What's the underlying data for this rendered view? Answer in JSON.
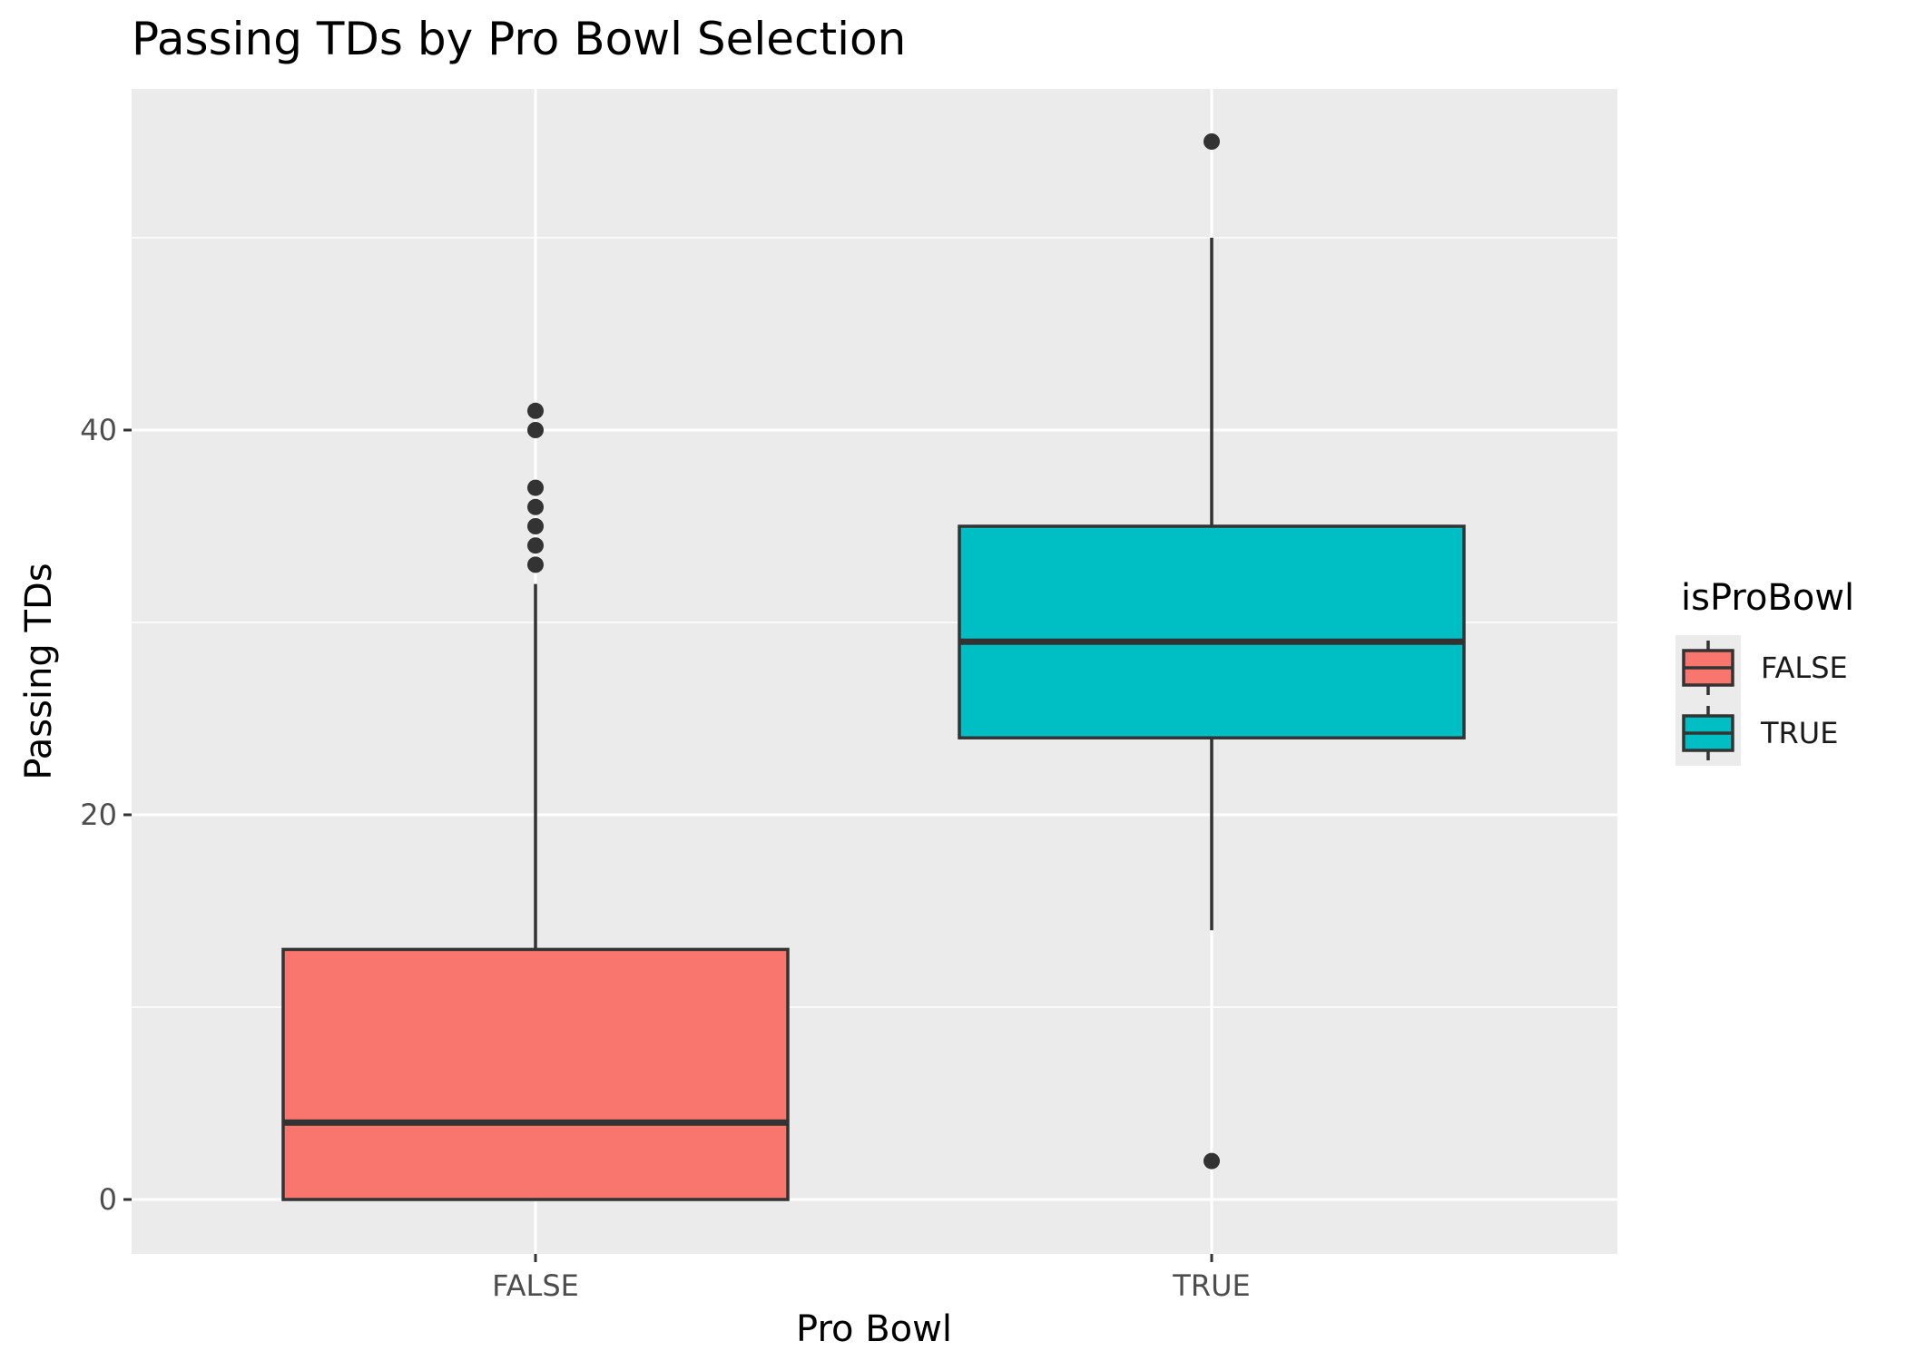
{
  "chart_data": {
    "type": "boxplot",
    "title": "Passing TDs by Pro Bowl Selection",
    "xlabel": "Pro Bowl",
    "ylabel": "Passing TDs",
    "ylim": [
      -3,
      57
    ],
    "yticks": [
      0,
      20,
      40
    ],
    "grid": true,
    "legend": {
      "title": "isProBowl",
      "position": "right",
      "entries": [
        "FALSE",
        "TRUE"
      ]
    },
    "categories": [
      "FALSE",
      "TRUE"
    ],
    "series": [
      {
        "category": "FALSE",
        "color": "#F8766D",
        "min": 0,
        "q1": 0,
        "median": 4,
        "q3": 13,
        "max": 32,
        "outliers": [
          33,
          34,
          35,
          36,
          37,
          40,
          41
        ]
      },
      {
        "category": "TRUE",
        "color": "#00BFC4",
        "min": 14,
        "q1": 24,
        "median": 29,
        "q3": 35,
        "max": 50,
        "outliers": [
          2,
          55
        ]
      }
    ],
    "colors": {
      "panel_bg": "#EBEBEB",
      "grid": "#FFFFFF",
      "box_line": "#333333"
    }
  }
}
